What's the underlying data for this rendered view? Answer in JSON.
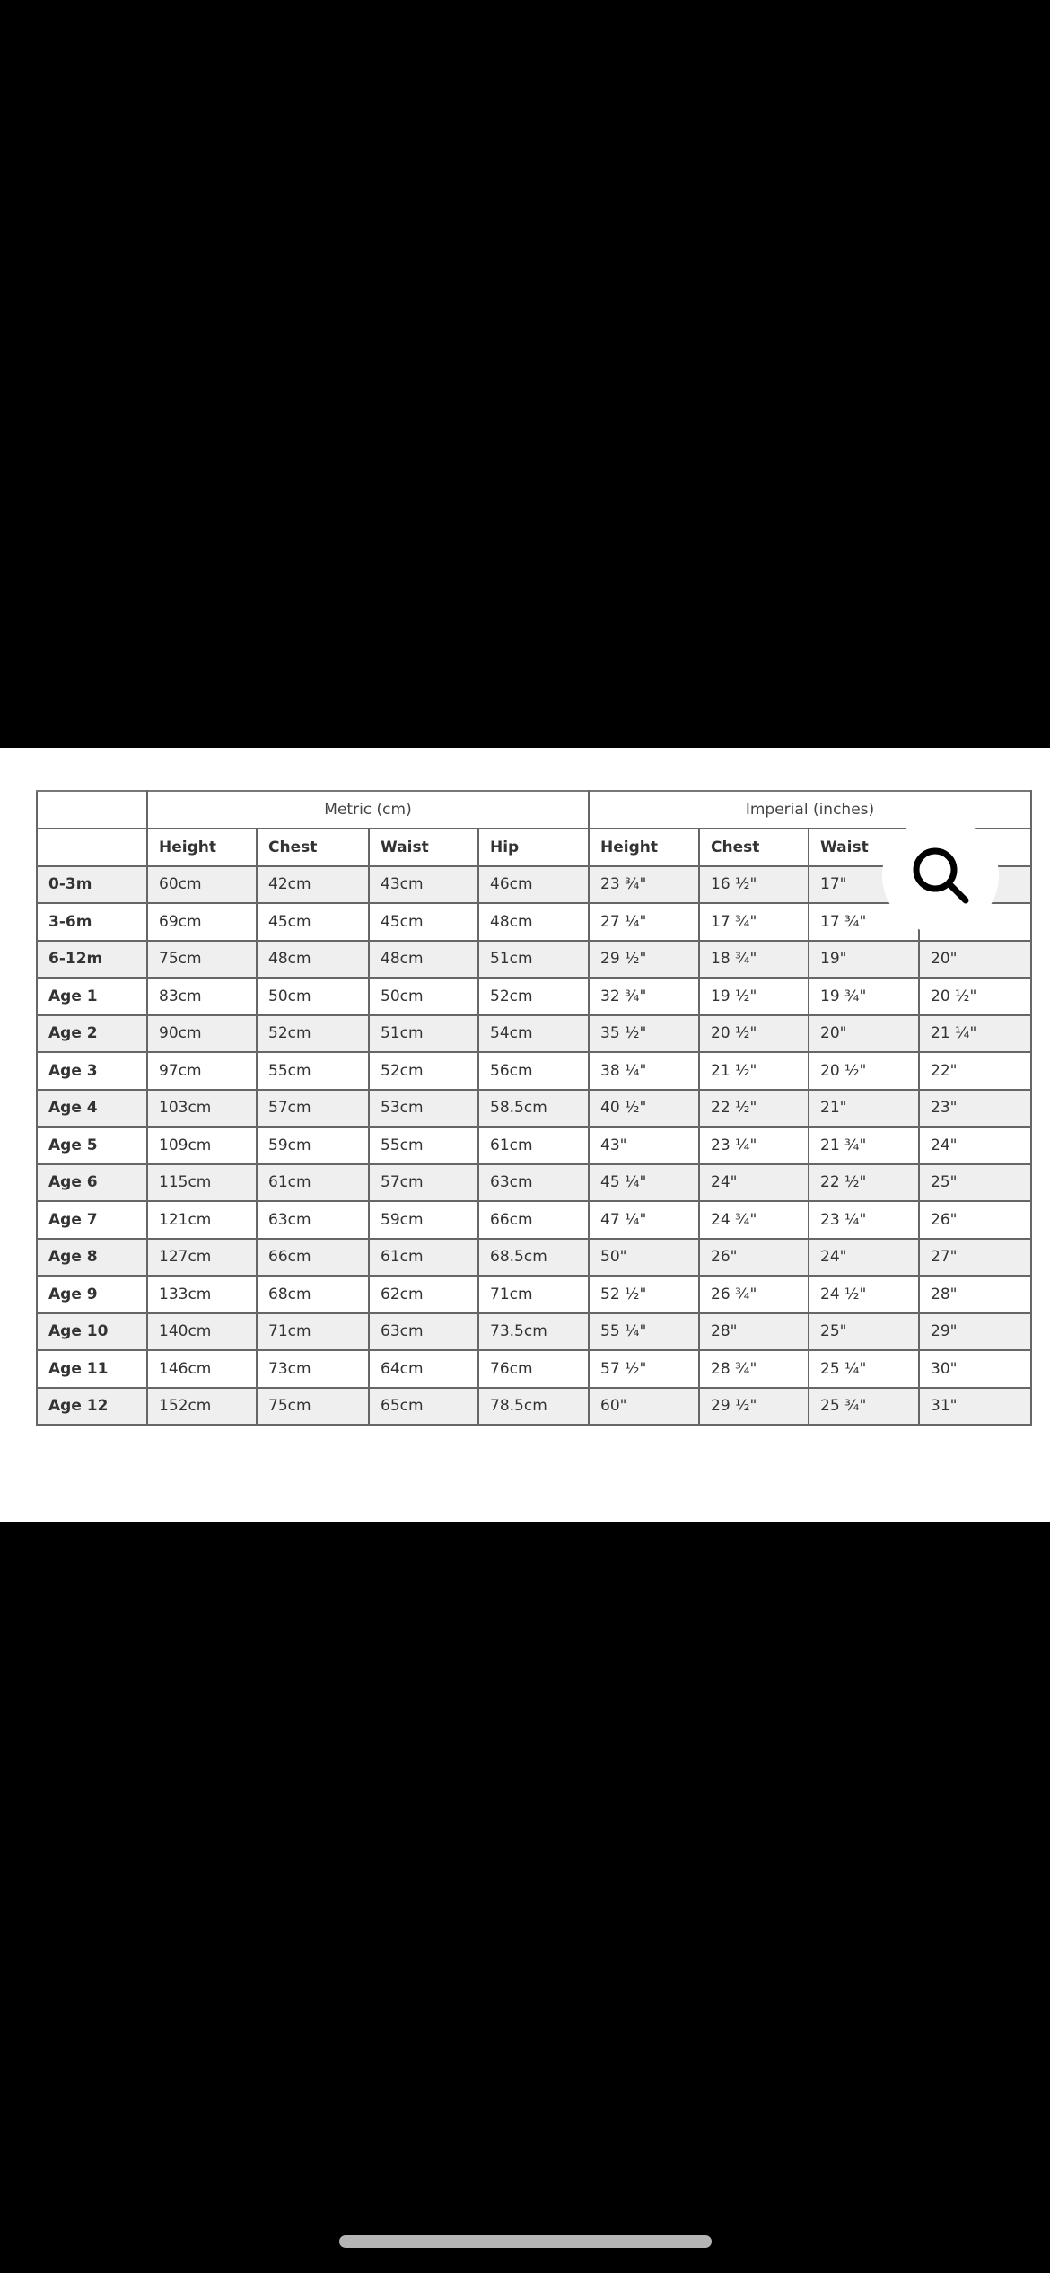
{
  "table": {
    "group_headers": [
      "",
      "Metric (cm)",
      "Imperial (inches)"
    ],
    "column_headers": [
      "",
      "Height",
      "Chest",
      "Waist",
      "Hip",
      "Height",
      "Chest",
      "Waist",
      ""
    ],
    "rows": [
      [
        "0-3m",
        "60cm",
        "42cm",
        "43cm",
        "46cm",
        "23 ¾\"",
        "16 ½\"",
        "17\"",
        ""
      ],
      [
        "3-6m",
        "69cm",
        "45cm",
        "45cm",
        "48cm",
        "27 ¼\"",
        "17 ¾\"",
        "17 ¾\"",
        ""
      ],
      [
        "6-12m",
        "75cm",
        "48cm",
        "48cm",
        "51cm",
        "29 ½\"",
        "18 ¾\"",
        "19\"",
        "20\""
      ],
      [
        "Age 1",
        "83cm",
        "50cm",
        "50cm",
        "52cm",
        "32 ¾\"",
        "19 ½\"",
        "19 ¾\"",
        "20 ½\""
      ],
      [
        "Age 2",
        "90cm",
        "52cm",
        "51cm",
        "54cm",
        "35 ½\"",
        "20 ½\"",
        "20\"",
        "21 ¼\""
      ],
      [
        "Age 3",
        "97cm",
        "55cm",
        "52cm",
        "56cm",
        "38 ¼\"",
        "21 ½\"",
        "20 ½\"",
        "22\""
      ],
      [
        "Age 4",
        "103cm",
        "57cm",
        "53cm",
        "58.5cm",
        "40 ½\"",
        "22 ½\"",
        "21\"",
        "23\""
      ],
      [
        "Age 5",
        "109cm",
        "59cm",
        "55cm",
        "61cm",
        "43\"",
        "23 ¼\"",
        "21 ¾\"",
        "24\""
      ],
      [
        "Age 6",
        "115cm",
        "61cm",
        "57cm",
        "63cm",
        "45 ¼\"",
        "24\"",
        "22 ½\"",
        "25\""
      ],
      [
        "Age 7",
        "121cm",
        "63cm",
        "59cm",
        "66cm",
        "47 ¼\"",
        "24 ¾\"",
        "23 ¼\"",
        "26\""
      ],
      [
        "Age 8",
        "127cm",
        "66cm",
        "61cm",
        "68.5cm",
        "50\"",
        "26\"",
        "24\"",
        "27\""
      ],
      [
        "Age 9",
        "133cm",
        "68cm",
        "62cm",
        "71cm",
        "52 ½\"",
        "26 ¾\"",
        "24 ½\"",
        "28\""
      ],
      [
        "Age 10",
        "140cm",
        "71cm",
        "63cm",
        "73.5cm",
        "55 ¼\"",
        "28\"",
        "25\"",
        "29\""
      ],
      [
        "Age 11",
        "146cm",
        "73cm",
        "64cm",
        "76cm",
        "57 ½\"",
        "28 ¾\"",
        "25 ¼\"",
        "30\""
      ],
      [
        "Age 12",
        "152cm",
        "75cm",
        "65cm",
        "78.5cm",
        "60\"",
        "29 ½\"",
        "25 ¾\"",
        "31\""
      ]
    ]
  },
  "overlay": {
    "search_icon": "magnifying-glass-icon"
  },
  "colors": {
    "background": "#000000",
    "row_alt": "#efefef",
    "grid": "#666666"
  }
}
